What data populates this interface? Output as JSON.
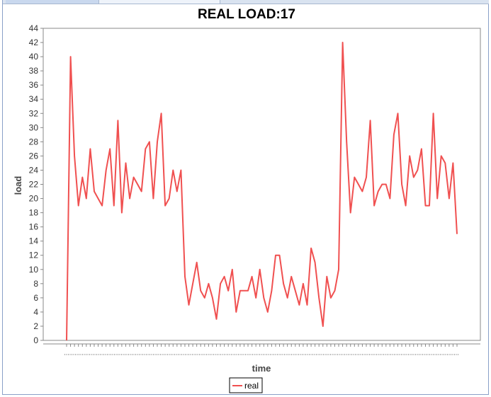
{
  "chart_data": {
    "type": "line",
    "title": "REAL LOAD:17",
    "xlabel": "time",
    "ylabel": "load",
    "ylim": [
      0,
      44
    ],
    "yticks": [
      0,
      2,
      4,
      6,
      8,
      10,
      12,
      14,
      16,
      18,
      20,
      22,
      24,
      26,
      28,
      30,
      32,
      34,
      36,
      38,
      40,
      42,
      44
    ],
    "grid": false,
    "legend": "bottom-center",
    "series": [
      {
        "name": "real",
        "color": "#f05050",
        "values": [
          0,
          40,
          26,
          19,
          23,
          20,
          27,
          21,
          20,
          19,
          24,
          27,
          19,
          31,
          18,
          25,
          20,
          23,
          22,
          21,
          27,
          28,
          20,
          28,
          32,
          19,
          20,
          24,
          21,
          24,
          9,
          5,
          8,
          11,
          7,
          6,
          8,
          6,
          3,
          8,
          9,
          7,
          10,
          4,
          7,
          7,
          7,
          9,
          6,
          10,
          6,
          4,
          7,
          12,
          12,
          8,
          6,
          9,
          7,
          5,
          8,
          5,
          13,
          11,
          6,
          2,
          9,
          6,
          7,
          10,
          42,
          28,
          18,
          23,
          22,
          21,
          23,
          31,
          19,
          21,
          22,
          22,
          20,
          29,
          32,
          22,
          19,
          26,
          23,
          24,
          27,
          19,
          19,
          32,
          20,
          26,
          25,
          20,
          25,
          15
        ]
      }
    ]
  },
  "colors": {
    "series_line": "#f05050",
    "plot_border": "#888888",
    "window_border": "#8aa0c8"
  }
}
